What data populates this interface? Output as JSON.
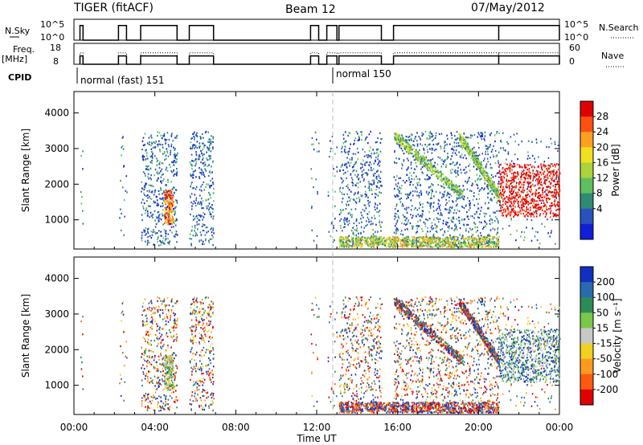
{
  "header": {
    "station": "TIGER (fitACF)",
    "beam": "Beam 12",
    "date": "07/May/2012"
  },
  "status_panels": {
    "nsky_label": "N.Sky",
    "freq_label_line1": "Freq.",
    "freq_label_line2": "[MHz]",
    "cpid_label": "CPID",
    "nsky_ticks": [
      "10^5",
      "10^0"
    ],
    "freq_ticks": [
      "18",
      "8"
    ],
    "nsearch_ticks": [
      "10^5",
      "10^0"
    ],
    "nave_ticks": [
      "60",
      "0"
    ],
    "nsearch_label": "N.Search",
    "nave_label": "Nave",
    "cpid_segments": [
      {
        "label": "normal (fast) 151",
        "start_hour": 0.5
      },
      {
        "label": "normal 150",
        "start_hour": 13.0
      }
    ]
  },
  "chart_data": [
    {
      "type": "heatmap",
      "name": "power-panel",
      "ylabel": "Slant Range [km]",
      "xlabel": "",
      "xlim": [
        0,
        24
      ],
      "ylim": [
        180,
        4600
      ],
      "yticks": [
        "1000",
        "2000",
        "3000",
        "4000"
      ],
      "colorbar_label": "Power [dB]",
      "colorbar_ticks": [
        "4",
        "8",
        "12",
        "16",
        "20",
        "24",
        "28"
      ],
      "colorbar_colors": [
        "#1020d8",
        "#2a52be",
        "#2e8b74",
        "#5fbf5f",
        "#aad43a",
        "#f0e020",
        "#ffa020",
        "#ff5010",
        "#e00000"
      ],
      "observation_windows_hours": [
        [
          0.3,
          0.45
        ],
        [
          2.2,
          2.6
        ],
        [
          3.3,
          5.1
        ],
        [
          5.7,
          6.9
        ],
        [
          11.7,
          12.1
        ],
        [
          12.5,
          13.0
        ],
        [
          13.1,
          15.2
        ],
        [
          15.8,
          21.0
        ],
        [
          21.0,
          24.0
        ]
      ],
      "features": [
        {
          "label": "ground scatter band",
          "time_hours": [
            13.1,
            21.0
          ],
          "range_km": [
            250,
            550
          ]
        },
        {
          "label": "ionospheric echo arc 1",
          "time_hours": [
            15.8,
            19.2
          ],
          "range_km": [
            1700,
            3400
          ]
        },
        {
          "label": "ionospheric echo arc 2",
          "time_hours": [
            19.0,
            21.0
          ],
          "range_km": [
            1700,
            3400
          ]
        },
        {
          "label": "strong scatter patch",
          "time_hours": [
            21.0,
            24.0
          ],
          "range_km": [
            1100,
            2600
          ]
        }
      ]
    },
    {
      "type": "heatmap",
      "name": "velocity-panel",
      "ylabel": "Slant Range [km]",
      "xlabel": "Time UT",
      "xlim": [
        0,
        24
      ],
      "ylim": [
        180,
        4600
      ],
      "yticks": [
        "1000",
        "2000",
        "3000",
        "4000"
      ],
      "xticks": [
        "00:00",
        "04:00",
        "08:00",
        "12:00",
        "16:00",
        "20:00",
        "00:00"
      ],
      "colorbar_label": "Velocity [m s⁻¹]",
      "colorbar_ticks": [
        "200",
        "100",
        "50",
        "15",
        "-15",
        "-50",
        "-100",
        "-200"
      ],
      "colorbar_colors": [
        "#1030c0",
        "#2a6ab0",
        "#2e8b57",
        "#7ac84a",
        "#c8c8c8",
        "#f0d020",
        "#ff9a20",
        "#ff5a10",
        "#e00000"
      ]
    }
  ]
}
